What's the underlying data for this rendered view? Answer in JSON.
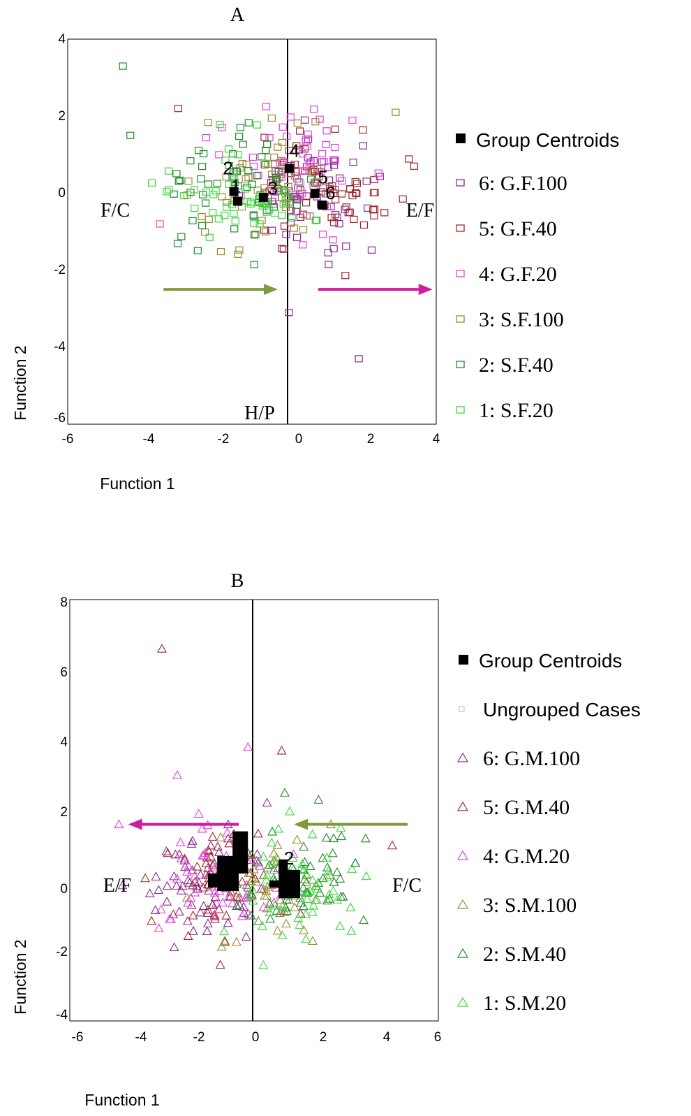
{
  "chart_data": [
    {
      "type": "scatter",
      "title": "A",
      "xlabel": "Function 1",
      "ylabel": "Function 2",
      "xlim": [
        -6,
        4
      ],
      "ylim": [
        -6,
        4
      ],
      "xticks": [
        "-6",
        "-4",
        "-2",
        "0",
        "2",
        "4"
      ],
      "yticks": [
        "4",
        "2",
        "0",
        "-2",
        "-4",
        "-6"
      ],
      "grid": false,
      "legend_position": "right",
      "marker": "square",
      "annotations": [
        "F/C",
        "E/F",
        "H/P"
      ],
      "arrows": [
        {
          "color": "#7f9a3c",
          "from": [
            -3.4,
            -2.5
          ],
          "to": [
            -0.3,
            -2.5
          ]
        },
        {
          "color": "#cc1f9e",
          "from": [
            0.8,
            -2.5
          ],
          "to": [
            3.9,
            -2.5
          ]
        }
      ],
      "centroid_legend": "Group Centroids",
      "centroids": [
        {
          "label": "1",
          "x": -1.4,
          "y": -0.2
        },
        {
          "label": "2",
          "x": -1.5,
          "y": 0.05
        },
        {
          "label": "3",
          "x": -0.7,
          "y": -0.1
        },
        {
          "label": "4",
          "x": 0.0,
          "y": 0.65
        },
        {
          "label": "5",
          "x": 0.7,
          "y": 0.0
        },
        {
          "label": "6",
          "x": 0.9,
          "y": -0.3
        }
      ],
      "series": [
        {
          "name": "6: G.F.100",
          "color": "#8b2a8f",
          "center": [
            0.9,
            -0.1
          ],
          "count": 55,
          "seed": 61
        },
        {
          "name": "5: G.F.40",
          "color": "#a02828",
          "center": [
            0.8,
            0.05
          ],
          "count": 60,
          "seed": 52
        },
        {
          "name": "4: G.F.20",
          "color": "#e040e0",
          "center": [
            0.2,
            0.5
          ],
          "count": 60,
          "seed": 43
        },
        {
          "name": "3: S.F.100",
          "color": "#9a8a30",
          "center": [
            -0.6,
            0.0
          ],
          "count": 50,
          "seed": 34
        },
        {
          "name": "2: S.F.40",
          "color": "#1e8a2a",
          "center": [
            -1.6,
            0.05
          ],
          "count": 55,
          "seed": 25
        },
        {
          "name": "1: S.F.20",
          "color": "#3ad83a",
          "center": [
            -1.3,
            -0.2
          ],
          "count": 50,
          "seed": 16
        }
      ],
      "extra_points": [
        {
          "x": -4.5,
          "y": 3.3,
          "series": 4
        },
        {
          "x": -4.3,
          "y": 1.5,
          "series": 4
        },
        {
          "x": 1.9,
          "y": -4.3,
          "series": 0
        },
        {
          "x": 3.4,
          "y": 0.7,
          "series": 1
        },
        {
          "x": -3.5,
          "y": -0.8,
          "series": 2
        },
        {
          "x": -3.0,
          "y": 2.2,
          "series": 1
        },
        {
          "x": 0.0,
          "y": -3.1,
          "series": 0
        },
        {
          "x": 2.9,
          "y": 2.1,
          "series": 3
        }
      ]
    },
    {
      "type": "scatter",
      "title": "B",
      "xlabel": "Function 1",
      "ylabel": "Function 2",
      "xlim": [
        -6,
        6
      ],
      "ylim": [
        -4,
        8
      ],
      "xticks": [
        "-6",
        "-4",
        "-2",
        "0",
        "2",
        "4",
        "6"
      ],
      "yticks": [
        "8",
        "6",
        "4",
        "2",
        "0",
        "-2",
        "-4"
      ],
      "grid": false,
      "legend_position": "right",
      "marker": "triangle",
      "annotations": [
        "E/F",
        "F/C"
      ],
      "arrows": [
        {
          "color": "#7f9a3c",
          "from": [
            5.0,
            1.6
          ],
          "to": [
            1.3,
            1.6
          ]
        },
        {
          "color": "#cc1f9e",
          "from": [
            -0.5,
            1.6
          ],
          "to": [
            -4.1,
            1.6
          ]
        }
      ],
      "centroid_legend": "Group Centroids",
      "ungrouped_legend": "Ungrouped Cases",
      "centroids": [
        {
          "label": "2",
          "x": 1.0,
          "y": 0.3
        }
      ],
      "centroid_blocks": [
        {
          "x1": -0.7,
          "y1": 0.2,
          "x2": -0.2,
          "y2": 1.4
        },
        {
          "x1": -1.2,
          "y1": -0.3,
          "x2": -0.5,
          "y2": 0.7
        },
        {
          "x1": -1.5,
          "y1": -0.2,
          "x2": -1.1,
          "y2": 0.2
        },
        {
          "x1": 0.8,
          "y1": -0.5,
          "x2": 1.5,
          "y2": 0.3
        },
        {
          "x1": 0.8,
          "y1": 0.2,
          "x2": 1.1,
          "y2": 0.6
        },
        {
          "x1": 0.5,
          "y1": -0.2,
          "x2": 0.8,
          "y2": 0.0
        }
      ],
      "series": [
        {
          "name": "6: G.M.100",
          "color": "#8b2a8f",
          "center": [
            -1.8,
            -0.2
          ],
          "count": 55,
          "seed": 71
        },
        {
          "name": "5: G.M.40",
          "color": "#a02828",
          "center": [
            -1.2,
            -0.1
          ],
          "count": 55,
          "seed": 82
        },
        {
          "name": "4: G.M.20",
          "color": "#e040e0",
          "center": [
            -1.0,
            0.0
          ],
          "count": 50,
          "seed": 93
        },
        {
          "name": "3: S.M.100",
          "color": "#9a8a30",
          "center": [
            0.5,
            -0.2
          ],
          "count": 45,
          "seed": 14
        },
        {
          "name": "2: S.M.40",
          "color": "#1e8a2a",
          "center": [
            1.4,
            0.1
          ],
          "count": 55,
          "seed": 27
        },
        {
          "name": "1: S.M.20",
          "color": "#3ad83a",
          "center": [
            1.3,
            -0.4
          ],
          "count": 55,
          "seed": 38
        }
      ],
      "extra_points": [
        {
          "x": -3.0,
          "y": 6.6,
          "series": 1
        },
        {
          "x": -0.2,
          "y": 3.8,
          "series": 2
        },
        {
          "x": 0.9,
          "y": 3.7,
          "series": 1
        },
        {
          "x": -2.5,
          "y": 3.0,
          "series": 2
        },
        {
          "x": -4.4,
          "y": 1.6,
          "series": 2
        },
        {
          "x": 4.5,
          "y": 1.0,
          "series": 1
        },
        {
          "x": 2.1,
          "y": 2.3,
          "series": 4
        },
        {
          "x": 1.0,
          "y": 2.5,
          "series": 4
        },
        {
          "x": -1.1,
          "y": -2.4,
          "series": 1
        },
        {
          "x": 3.3,
          "y": 0.5,
          "series": 4
        },
        {
          "x": 2.8,
          "y": -1.3,
          "series": 5
        },
        {
          "x": -2.6,
          "y": -1.9,
          "series": 0
        },
        {
          "x": -1.8,
          "y": 1.9,
          "series": 2
        },
        {
          "x": 2.5,
          "y": 1.6,
          "series": 3
        }
      ]
    }
  ]
}
